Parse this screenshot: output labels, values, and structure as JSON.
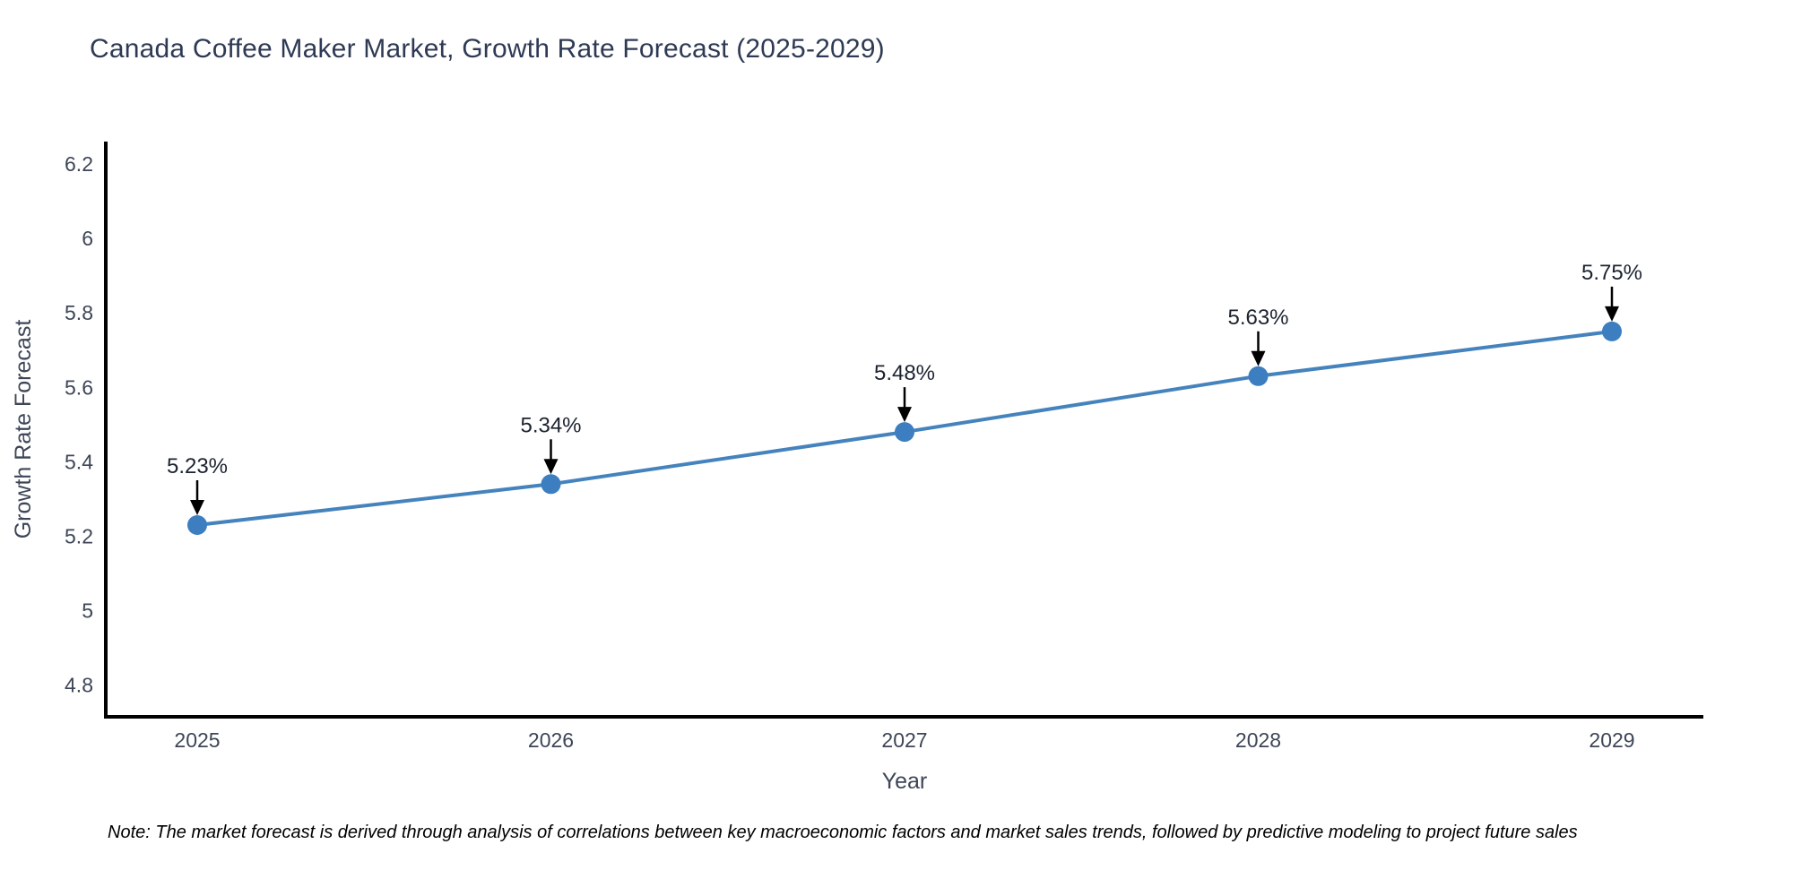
{
  "title": {
    "text": "Canada Coffee Maker Market, Growth Rate Forecast (2025-2029)",
    "color": "#2e3a55"
  },
  "note": {
    "text": "Note: The market forecast is derived through analysis of correlations between key macroeconomic factors and market sales trends, followed by predictive modeling to project future sales"
  },
  "chart_data": {
    "type": "line",
    "title": "Canada Coffee Maker Market, Growth Rate Forecast (2025-2029)",
    "categories": [
      "2025",
      "2026",
      "2027",
      "2028",
      "2029"
    ],
    "series": [
      {
        "name": "Growth Rate Forecast",
        "values": [
          5.23,
          5.34,
          5.48,
          5.63,
          5.75
        ]
      }
    ],
    "point_labels": [
      "5.23%",
      "5.34%",
      "5.48%",
      "5.63%",
      "5.75%"
    ],
    "xlabel": "Year",
    "ylabel": "Growth Rate Forecast",
    "yticks": [
      4.8,
      5,
      5.2,
      5.4,
      5.6,
      5.8,
      6,
      6.2
    ],
    "ylim": [
      4.715,
      6.26
    ],
    "grid": false,
    "legend": "none",
    "colors": {
      "line": "#4583bd",
      "marker": "#3c7ebf",
      "axis_line": "#000000",
      "tick_text": "#3d4557",
      "axis_title_text": "#3d4557",
      "annotation_text": "#1c2330",
      "annotation_arrow": "#000000"
    }
  }
}
